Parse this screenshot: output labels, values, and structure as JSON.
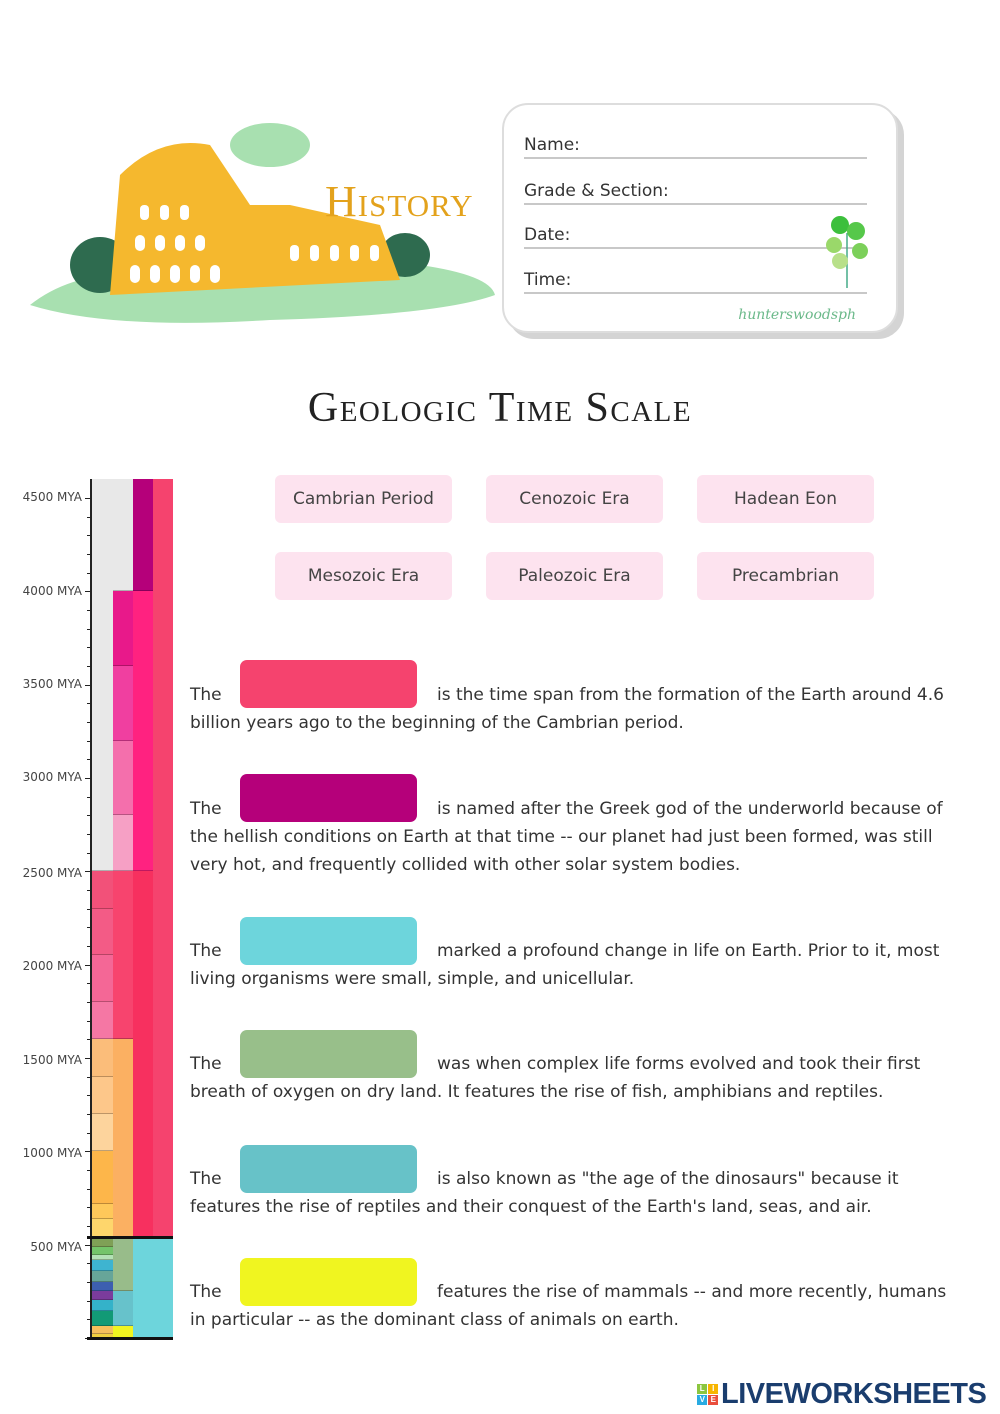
{
  "header": {
    "subject": "History",
    "fields": [
      "Name:",
      "Grade & Section:",
      "Date:",
      "Time:"
    ],
    "signature": "hunterswoodsph"
  },
  "title": "Geologic Time Scale",
  "word_bank": [
    "Cambrian Period",
    "Cenozoic Era",
    "Hadean Eon",
    "Mesozoic Era",
    "Paleozoic Era",
    "Precambrian"
  ],
  "questions": [
    {
      "lead": "The",
      "rest": "is the time span from the formation of the Earth around 4.6 billion years ago to the beginning of the Cambrian period.",
      "color": "#f5436e"
    },
    {
      "lead": "The",
      "rest": "is named after the Greek god of the underworld because of the hellish conditions on Earth at that time -- our planet had just been formed, was still very hot, and frequently collided with other solar system bodies.",
      "color": "#b5007a"
    },
    {
      "lead": "The",
      "rest": "marked a profound change in life on Earth. Prior to it, most living organisms were small, simple, and unicellular.",
      "color": "#6dd5dc"
    },
    {
      "lead": "The",
      "rest": "was when complex life forms evolved and took their first breath of oxygen on dry land. It features the rise of fish, amphibians and reptiles.",
      "color": "#98bf8a"
    },
    {
      "lead": "The",
      "rest": "is also known as \"the age of the dinosaurs\" because it features the rise of reptiles and their conquest of the Earth's land, seas, and air.",
      "color": "#67c2c8"
    },
    {
      "lead": "The",
      "rest": "features the rise of mammals -- and more recently, humans in particular -- as the dominant class of animals on earth.",
      "color": "#f0f520"
    }
  ],
  "timescale": {
    "tick_labels": [
      "4500 MYA",
      "4000 MYA",
      "3500 MYA",
      "3000 MYA",
      "2500 MYA",
      "2000 MYA",
      "1500 MYA",
      "1000 MYA",
      "500 MYA"
    ],
    "tick_values": [
      4500,
      4000,
      3500,
      3000,
      2500,
      2000,
      1500,
      1000,
      500
    ],
    "blocks": [
      [
        3,
        4600,
        541,
        "#f5436e"
      ],
      [
        2,
        4600,
        4000,
        "#b5007a"
      ],
      [
        2,
        4000,
        2500,
        "#ff2280"
      ],
      [
        2,
        2500,
        541,
        "#f7305f"
      ],
      [
        2,
        541,
        0,
        "#6dd5dc"
      ],
      [
        3,
        541,
        0,
        "#6dd5dc"
      ],
      [
        1,
        4600,
        4000,
        "#e8e8e8"
      ],
      [
        1,
        4000,
        3600,
        "#e8198a"
      ],
      [
        1,
        3600,
        3200,
        "#f03fa0"
      ],
      [
        1,
        3200,
        2800,
        "#f46fac"
      ],
      [
        1,
        2800,
        2500,
        "#f6a0c5"
      ],
      [
        1,
        2500,
        1600,
        "#f7446e"
      ],
      [
        1,
        1600,
        541,
        "#fbb062"
      ],
      [
        1,
        541,
        252,
        "#98bc8a"
      ],
      [
        1,
        252,
        66,
        "#67c2cb"
      ],
      [
        1,
        66,
        0,
        "#f1f520"
      ],
      [
        0,
        4600,
        2500,
        "#e8e8e8"
      ],
      [
        0,
        2500,
        2300,
        "#f25179"
      ],
      [
        0,
        2300,
        2050,
        "#f35b86"
      ],
      [
        0,
        2050,
        1800,
        "#f46796"
      ],
      [
        0,
        1800,
        1600,
        "#f577a4"
      ],
      [
        0,
        1600,
        1400,
        "#fbbd7a"
      ],
      [
        0,
        1400,
        1200,
        "#fdc78a"
      ],
      [
        0,
        1200,
        1000,
        "#fdd49d"
      ],
      [
        0,
        1000,
        720,
        "#fdb64a"
      ],
      [
        0,
        720,
        635,
        "#fec85a"
      ],
      [
        0,
        635,
        541,
        "#fed66c"
      ],
      [
        0,
        541,
        485,
        "#7fa056"
      ],
      [
        0,
        485,
        444,
        "#74c46a"
      ],
      [
        0,
        444,
        419,
        "#b3e1b6"
      ],
      [
        0,
        419,
        359,
        "#3eb4d0"
      ],
      [
        0,
        359,
        299,
        "#67a599"
      ],
      [
        0,
        299,
        252,
        "#3d5fb0"
      ],
      [
        0,
        252,
        201,
        "#7b3c9c"
      ],
      [
        0,
        201,
        145,
        "#34b2c9"
      ],
      [
        0,
        145,
        66,
        "#129a76"
      ],
      [
        0,
        66,
        23,
        "#f5c05d"
      ],
      [
        0,
        23,
        0,
        "#f0d040"
      ]
    ]
  },
  "footer": {
    "logo": "LIVEWORKSHEETS",
    "logo_badge": [
      "L",
      "I",
      "V",
      "E"
    ]
  }
}
